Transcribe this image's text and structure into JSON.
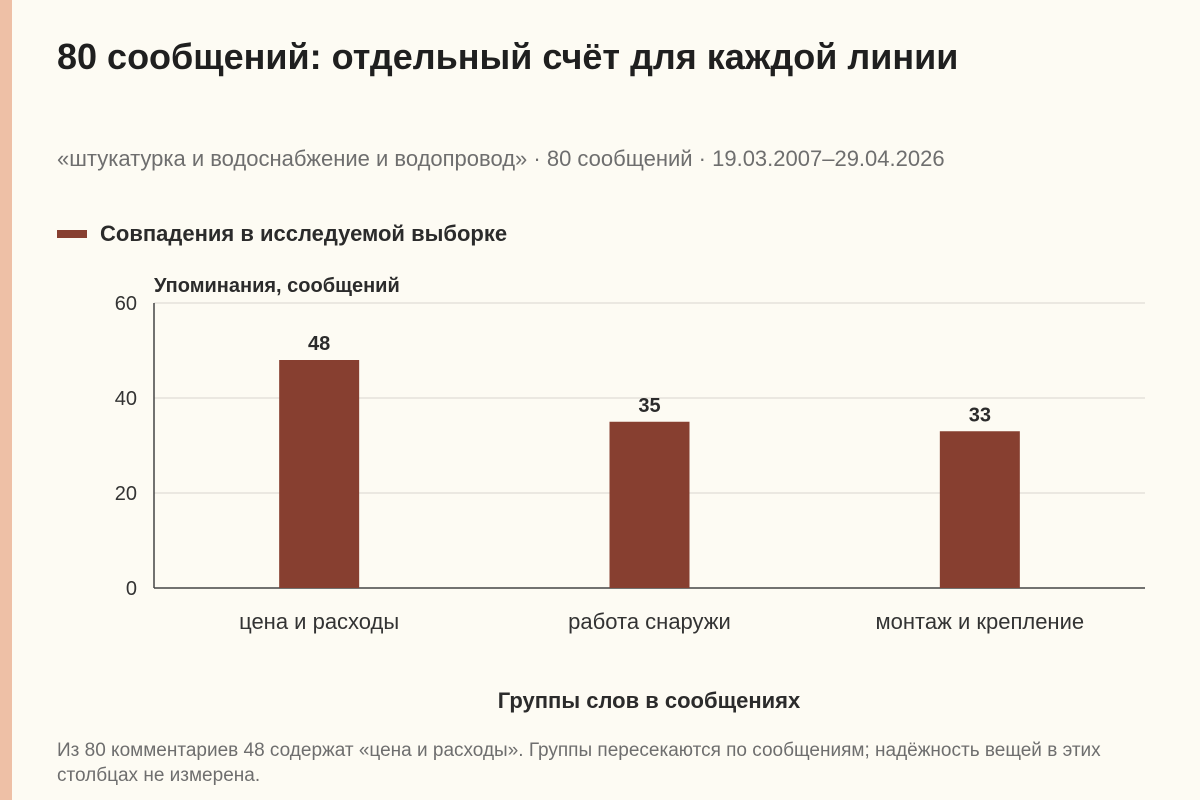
{
  "title": "80 сообщений: отдельный счёт для каждой линии",
  "subtitle": "«штукатурка и водоснабжение и водопровод» · 80 сообщений · 19.03.2007–29.04.2026",
  "note": "Из 80 комментариев 48 содержат «цена и расходы». Группы пересекаются по сообщениям; надёжность вещей в этих столбцах не измерена.",
  "colors": {
    "bar": "#873f30",
    "accent_strip": "#eec0a6",
    "background": "#fdfbf3"
  },
  "chart_data": {
    "type": "bar",
    "categories": [
      "цена и расходы",
      "работа снаружи",
      "монтаж и крепление"
    ],
    "series": [
      {
        "name": "Совпадения в исследуемой выборке",
        "values": [
          48,
          35,
          33
        ]
      }
    ],
    "ylabel": "Упоминания, сообщений",
    "xlabel": "Группы слов в сообщениях",
    "ylim": [
      0,
      60
    ],
    "yticks": [
      0,
      20,
      40,
      60
    ],
    "grid": true,
    "legend": "top-left"
  }
}
